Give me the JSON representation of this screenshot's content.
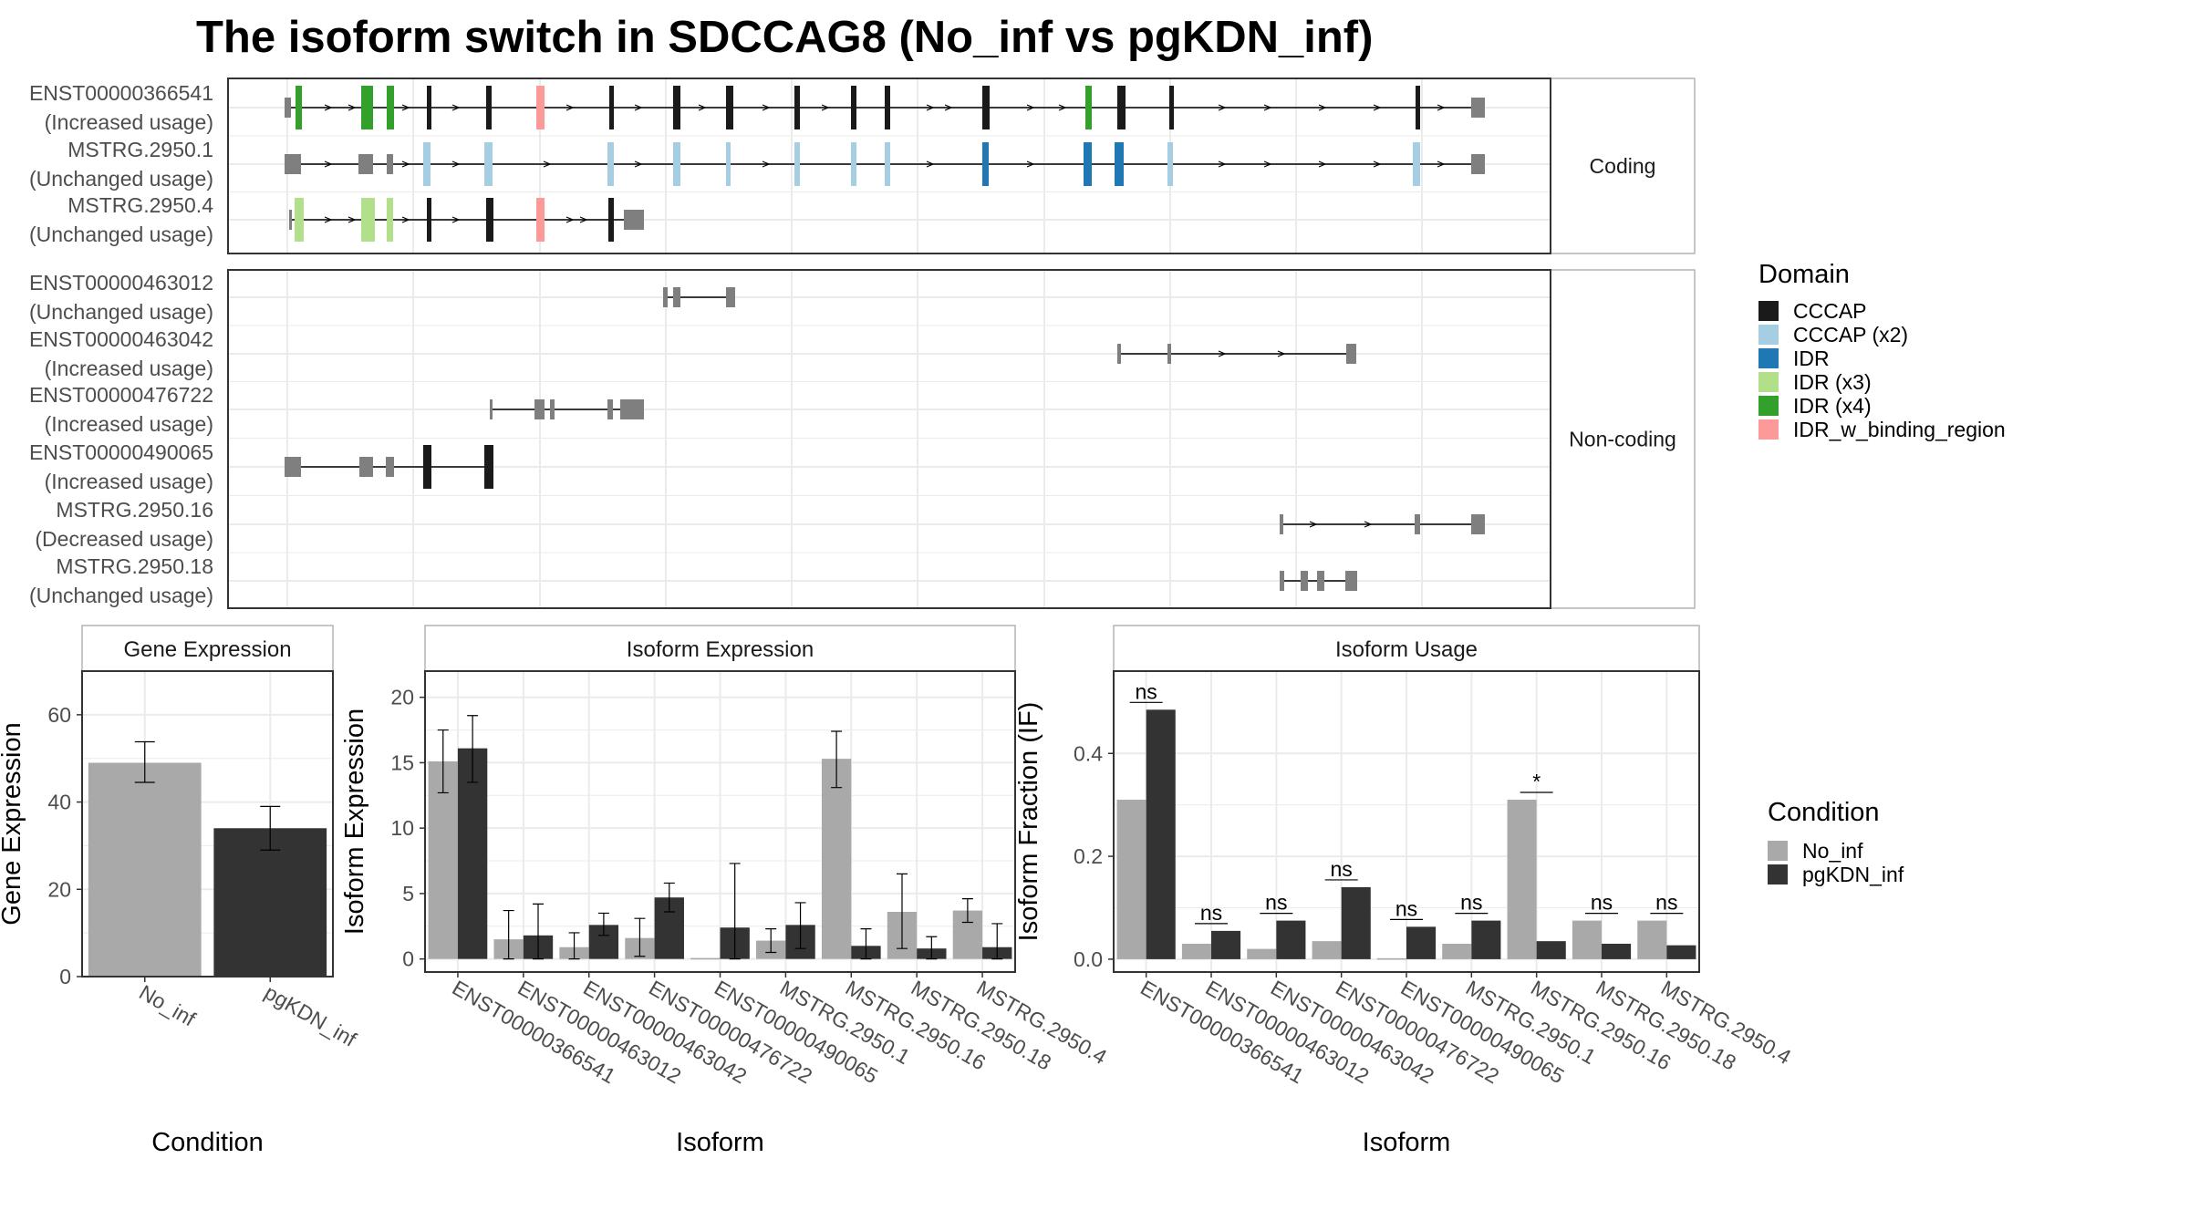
{
  "title": "The isoform switch in SDCCAG8 (No_inf vs pgKDN_inf)",
  "colors": {
    "intron": "#000000",
    "exon_default": "#7f7f7f",
    "no_inf": "#a9a9a9",
    "pgkdn_inf": "#333333",
    "grid": "#ebebeb",
    "panel_border": "#333333",
    "strip_border": "#b3b3b3"
  },
  "structure": {
    "facets": [
      "Coding",
      "Non-coding"
    ],
    "legend_title": "Domain",
    "legend": [
      {
        "label": "CCCAP",
        "color": "#1a1a1a"
      },
      {
        "label": "CCCAP (x2)",
        "color": "#a6cee3"
      },
      {
        "label": "IDR",
        "color": "#1f78b4"
      },
      {
        "label": "IDR (x3)",
        "color": "#b2df8a"
      },
      {
        "label": "IDR (x4)",
        "color": "#33a02c"
      },
      {
        "label": "IDR_w_binding_region",
        "color": "#fb9a99"
      }
    ],
    "isoforms": [
      {
        "group": "Coding",
        "name": "ENST00000366541",
        "usage": "(Increased usage)",
        "exons": [
          [
            312,
            319,
            "u"
          ],
          [
            324,
            331,
            "IDR (x4)"
          ],
          [
            396,
            409,
            "IDR (x4)"
          ],
          [
            424,
            432,
            "IDR (x4)"
          ],
          [
            468,
            473,
            "CCCAP"
          ],
          [
            533,
            539,
            "CCCAP"
          ],
          [
            588,
            597,
            "IDR_w_binding_region"
          ],
          [
            668,
            673,
            "CCCAP"
          ],
          [
            738,
            746,
            "CCCAP"
          ],
          [
            796,
            804,
            "CCCAP"
          ],
          [
            871,
            877,
            "CCCAP"
          ],
          [
            933,
            939,
            "CCCAP"
          ],
          [
            970,
            976,
            "CCCAP"
          ],
          [
            1077,
            1085,
            "CCCAP"
          ],
          [
            1190,
            1197,
            "IDR (x4)"
          ],
          [
            1225,
            1234,
            "CCCAP"
          ],
          [
            1282,
            1287,
            "CCCAP"
          ],
          [
            1552,
            1557,
            "CCCAP"
          ],
          [
            1613,
            1628,
            "u"
          ]
        ],
        "arrows": [
          360,
          386,
          445,
          500,
          625,
          700,
          770,
          840,
          905,
          1020,
          1040,
          1130,
          1165,
          1340,
          1390,
          1450,
          1510,
          1580
        ]
      },
      {
        "group": "Coding",
        "name": "MSTRG.2950.1",
        "usage": "(Unchanged usage)",
        "exons": [
          [
            312,
            330,
            "u"
          ],
          [
            393,
            409,
            "u"
          ],
          [
            424,
            431,
            "u"
          ],
          [
            464,
            472,
            "CCCAP (x2)"
          ],
          [
            531,
            540,
            "CCCAP (x2)"
          ],
          [
            666,
            673,
            "CCCAP (x2)"
          ],
          [
            738,
            746,
            "CCCAP (x2)"
          ],
          [
            796,
            801,
            "CCCAP (x2)"
          ],
          [
            871,
            877,
            "CCCAP (x2)"
          ],
          [
            933,
            939,
            "CCCAP (x2)"
          ],
          [
            970,
            976,
            "CCCAP (x2)"
          ],
          [
            1077,
            1084,
            "IDR"
          ],
          [
            1188,
            1197,
            "IDR"
          ],
          [
            1222,
            1232,
            "IDR"
          ],
          [
            1280,
            1286,
            "CCCAP (x2)"
          ],
          [
            1549,
            1557,
            "CCCAP (x2)"
          ],
          [
            1613,
            1628,
            "u"
          ]
        ],
        "arrows": [
          360,
          445,
          500,
          600,
          700,
          840,
          1020,
          1130,
          1340,
          1390,
          1450,
          1510,
          1580
        ]
      },
      {
        "group": "Coding",
        "name": "MSTRG.2950.4",
        "usage": "(Unchanged usage)",
        "exons": [
          [
            317,
            320,
            "u"
          ],
          [
            323,
            333,
            "IDR (x3)"
          ],
          [
            396,
            411,
            "IDR (x3)"
          ],
          [
            424,
            431,
            "IDR (x3)"
          ],
          [
            468,
            473,
            "CCCAP"
          ],
          [
            533,
            541,
            "CCCAP"
          ],
          [
            588,
            597,
            "IDR_w_binding_region"
          ],
          [
            667,
            673,
            "CCCAP"
          ],
          [
            684,
            706,
            "u"
          ]
        ],
        "arrows": [
          360,
          386,
          445,
          500,
          625,
          640
        ]
      },
      {
        "group": "Non-coding",
        "name": "ENST00000463012",
        "usage": "(Unchanged usage)",
        "exons": [
          [
            727,
            732,
            "u"
          ],
          [
            738,
            746,
            "u"
          ],
          [
            796,
            806,
            "u"
          ]
        ],
        "arrows": []
      },
      {
        "group": "Non-coding",
        "name": "ENST00000463042",
        "usage": "(Increased usage)",
        "exons": [
          [
            1225,
            1229,
            "u"
          ],
          [
            1280,
            1284,
            "u"
          ],
          [
            1476,
            1487,
            "u"
          ]
        ],
        "arrows": [
          1340,
          1405
        ]
      },
      {
        "group": "Non-coding",
        "name": "ENST00000476722",
        "usage": "(Increased usage)",
        "exons": [
          [
            537,
            540,
            "u"
          ],
          [
            586,
            597,
            "u"
          ],
          [
            603,
            608,
            "u"
          ],
          [
            666,
            672,
            "u"
          ],
          [
            680,
            706,
            "u"
          ]
        ],
        "arrows": []
      },
      {
        "group": "Non-coding",
        "name": "ENST00000490065",
        "usage": "(Increased usage)",
        "exons": [
          [
            312,
            330,
            "u"
          ],
          [
            394,
            409,
            "u"
          ],
          [
            423,
            432,
            "u"
          ],
          [
            464,
            473,
            "CCCAP"
          ],
          [
            531,
            541,
            "CCCAP"
          ]
        ],
        "arrows": []
      },
      {
        "group": "Non-coding",
        "name": "MSTRG.2950.16",
        "usage": "(Decreased usage)",
        "exons": [
          [
            1403,
            1407,
            "u"
          ],
          [
            1551,
            1557,
            "u"
          ],
          [
            1613,
            1628,
            "u"
          ]
        ],
        "arrows": [
          1440,
          1500
        ]
      },
      {
        "group": "Non-coding",
        "name": "MSTRG.2950.18",
        "usage": "(Unchanged usage)",
        "exons": [
          [
            1403,
            1408,
            "u"
          ],
          [
            1426,
            1434,
            "u"
          ],
          [
            1444,
            1452,
            "u"
          ],
          [
            1475,
            1488,
            "u"
          ]
        ],
        "arrows": []
      }
    ]
  },
  "chart_data": [
    {
      "type": "bar",
      "title": "Gene Expression",
      "xlabel": "Condition",
      "ylabel": "Gene Expression",
      "ylim": [
        0,
        70
      ],
      "yticks": [
        0,
        20,
        40,
        60
      ],
      "categories": [
        "No_inf",
        "pgKDN_inf"
      ],
      "values": [
        49,
        34
      ],
      "errors": [
        [
          44.5,
          53.8
        ],
        [
          29.0,
          39.0
        ]
      ]
    },
    {
      "type": "bar",
      "title": "Isoform Expression",
      "xlabel": "Isoform",
      "ylabel": "Isoform Expression",
      "ylim": [
        -1,
        22
      ],
      "yticks": [
        0,
        5,
        10,
        15,
        20
      ],
      "categories": [
        "ENST00000366541",
        "ENST00000463012",
        "ENST00000463042",
        "ENST00000476722",
        "ENST00000490065",
        "MSTRG.2950.1",
        "MSTRG.2950.16",
        "MSTRG.2950.18",
        "MSTRG.2950.4"
      ],
      "series": [
        {
          "name": "No_inf",
          "values": [
            15.1,
            1.5,
            0.9,
            1.6,
            0.0,
            1.4,
            15.3,
            3.6,
            3.7
          ],
          "errors": [
            [
              12.7,
              17.5
            ],
            [
              0,
              3.7
            ],
            [
              0,
              2.0
            ],
            [
              0.2,
              3.1
            ],
            [
              0,
              0
            ],
            [
              0.5,
              2.3
            ],
            [
              13.1,
              17.4
            ],
            [
              0.8,
              6.5
            ],
            [
              2.8,
              4.6
            ]
          ]
        },
        {
          "name": "pgKDN_inf",
          "values": [
            16.1,
            1.8,
            2.6,
            4.7,
            2.4,
            2.6,
            1.0,
            0.8,
            0.9
          ],
          "errors": [
            [
              13.5,
              18.6
            ],
            [
              0,
              4.2
            ],
            [
              1.8,
              3.5
            ],
            [
              3.6,
              5.8
            ],
            [
              0,
              7.3
            ],
            [
              0.8,
              4.3
            ],
            [
              0,
              2.3
            ],
            [
              0,
              1.7
            ],
            [
              0,
              2.7
            ]
          ]
        }
      ]
    },
    {
      "type": "bar",
      "title": "Isoform Usage",
      "xlabel": "Isoform",
      "ylabel": "Isoform Fraction (IF)",
      "ylim": [
        -0.025,
        0.56
      ],
      "yticks": [
        0.0,
        0.2,
        0.4
      ],
      "categories": [
        "ENST00000366541",
        "ENST00000463012",
        "ENST00000463042",
        "ENST00000476722",
        "ENST00000490065",
        "MSTRG.2950.1",
        "MSTRG.2950.16",
        "MSTRG.2950.18",
        "MSTRG.2950.4"
      ],
      "series": [
        {
          "name": "No_inf",
          "values": [
            0.31,
            0.03,
            0.02,
            0.035,
            0.0,
            0.03,
            0.31,
            0.075,
            0.075
          ]
        },
        {
          "name": "pgKDN_inf",
          "values": [
            0.485,
            0.055,
            0.075,
            0.14,
            0.063,
            0.075,
            0.035,
            0.03,
            0.027
          ]
        }
      ],
      "significance": [
        "ns",
        "ns",
        "ns",
        "ns",
        "ns",
        "ns",
        "*",
        "ns",
        "ns"
      ]
    }
  ],
  "condition_legend": {
    "title": "Condition",
    "items": [
      {
        "label": "No_inf",
        "color": "#a9a9a9"
      },
      {
        "label": "pgKDN_inf",
        "color": "#333333"
      }
    ]
  }
}
